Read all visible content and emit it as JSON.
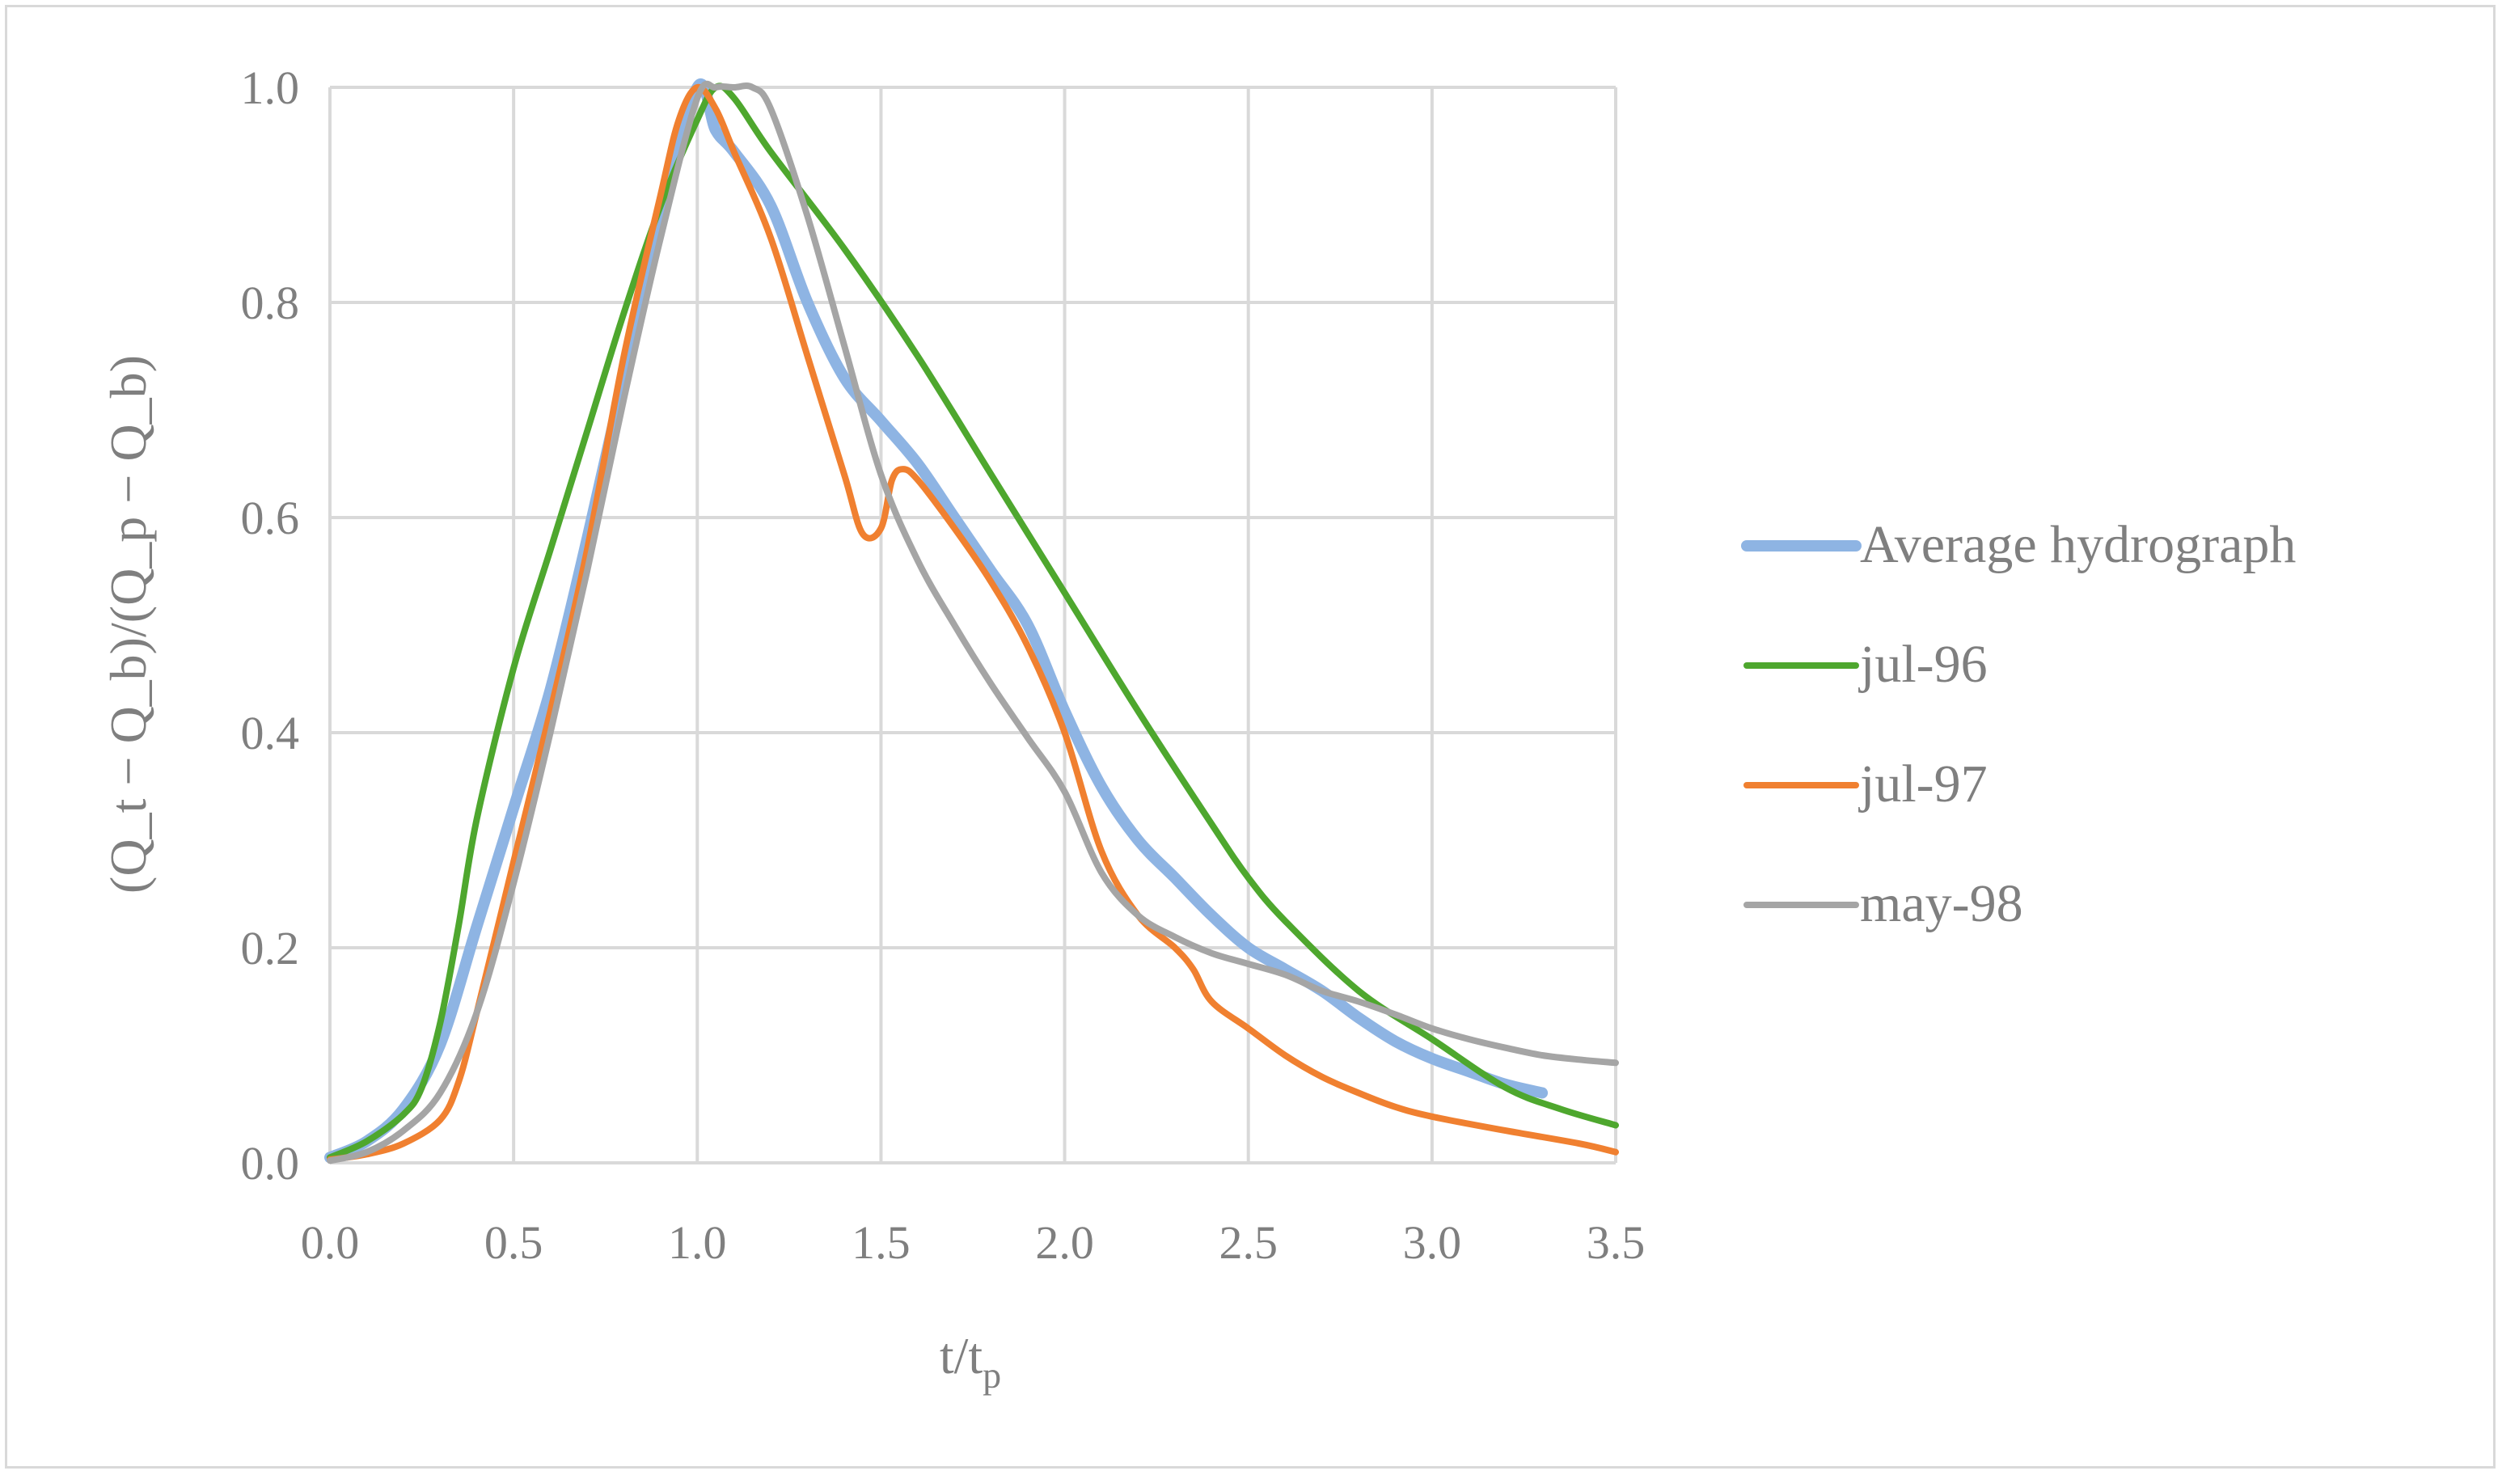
{
  "chart_data": {
    "type": "line",
    "title": "",
    "xlabel": {
      "base": "t/t",
      "sub": "p"
    },
    "ylabel": {
      "text": "(Q_t − Q_b)/(Q_p − Q_b)"
    },
    "xlim": [
      0,
      3.5
    ],
    "ylim": [
      0,
      1.0
    ],
    "x_ticks": [
      "0.0",
      "0.5",
      "1.0",
      "1.5",
      "2.0",
      "2.5",
      "3.0",
      "3.5"
    ],
    "y_ticks": [
      "0.0",
      "0.2",
      "0.4",
      "0.6",
      "0.8",
      "1.0"
    ],
    "grid": true,
    "legend_position": "right",
    "series": [
      {
        "name": "Average hydrograph",
        "color": "#8eb4e3",
        "width": "thick",
        "points": [
          [
            0,
            0.005
          ],
          [
            0.1,
            0.02
          ],
          [
            0.2,
            0.05
          ],
          [
            0.3,
            0.11
          ],
          [
            0.4,
            0.22
          ],
          [
            0.5,
            0.33
          ],
          [
            0.6,
            0.44
          ],
          [
            0.7,
            0.58
          ],
          [
            0.8,
            0.73
          ],
          [
            0.9,
            0.87
          ],
          [
            1.0,
            1.0
          ],
          [
            1.05,
            0.96
          ],
          [
            1.1,
            0.94
          ],
          [
            1.2,
            0.89
          ],
          [
            1.3,
            0.8
          ],
          [
            1.4,
            0.73
          ],
          [
            1.5,
            0.69
          ],
          [
            1.6,
            0.65
          ],
          [
            1.7,
            0.6
          ],
          [
            1.8,
            0.55
          ],
          [
            1.9,
            0.5
          ],
          [
            2.0,
            0.42
          ],
          [
            2.1,
            0.35
          ],
          [
            2.2,
            0.3
          ],
          [
            2.3,
            0.265
          ],
          [
            2.4,
            0.23
          ],
          [
            2.5,
            0.2
          ],
          [
            2.6,
            0.18
          ],
          [
            2.7,
            0.16
          ],
          [
            2.8,
            0.135
          ],
          [
            2.9,
            0.113
          ],
          [
            3.0,
            0.097
          ],
          [
            3.1,
            0.085
          ],
          [
            3.2,
            0.073
          ],
          [
            3.3,
            0.065
          ]
        ]
      },
      {
        "name": "jul-96",
        "color": "#4ea72e",
        "width": "normal",
        "points": [
          [
            0,
            0.005
          ],
          [
            0.1,
            0.02
          ],
          [
            0.2,
            0.045
          ],
          [
            0.25,
            0.07
          ],
          [
            0.3,
            0.13
          ],
          [
            0.35,
            0.22
          ],
          [
            0.4,
            0.32
          ],
          [
            0.5,
            0.46
          ],
          [
            0.6,
            0.57
          ],
          [
            0.7,
            0.68
          ],
          [
            0.8,
            0.79
          ],
          [
            0.9,
            0.89
          ],
          [
            1.0,
            0.97
          ],
          [
            1.05,
            1.0
          ],
          [
            1.1,
            0.99
          ],
          [
            1.2,
            0.94
          ],
          [
            1.4,
            0.85
          ],
          [
            1.6,
            0.75
          ],
          [
            1.8,
            0.64
          ],
          [
            2.0,
            0.53
          ],
          [
            2.2,
            0.42
          ],
          [
            2.4,
            0.315
          ],
          [
            2.5,
            0.265
          ],
          [
            2.6,
            0.225
          ],
          [
            2.8,
            0.16
          ],
          [
            3.0,
            0.115
          ],
          [
            3.2,
            0.07
          ],
          [
            3.35,
            0.05
          ],
          [
            3.5,
            0.035
          ]
        ]
      },
      {
        "name": "jul-97",
        "color": "#f08030",
        "width": "normal",
        "points": [
          [
            0,
            0.003
          ],
          [
            0.1,
            0.008
          ],
          [
            0.2,
            0.018
          ],
          [
            0.3,
            0.04
          ],
          [
            0.35,
            0.075
          ],
          [
            0.4,
            0.14
          ],
          [
            0.5,
            0.28
          ],
          [
            0.6,
            0.42
          ],
          [
            0.7,
            0.57
          ],
          [
            0.8,
            0.75
          ],
          [
            0.9,
            0.9
          ],
          [
            0.95,
            0.97
          ],
          [
            1.0,
            1.0
          ],
          [
            1.05,
            0.98
          ],
          [
            1.1,
            0.94
          ],
          [
            1.2,
            0.86
          ],
          [
            1.3,
            0.75
          ],
          [
            1.4,
            0.64
          ],
          [
            1.45,
            0.585
          ],
          [
            1.5,
            0.59
          ],
          [
            1.53,
            0.635
          ],
          [
            1.56,
            0.645
          ],
          [
            1.6,
            0.635
          ],
          [
            1.7,
            0.59
          ],
          [
            1.8,
            0.54
          ],
          [
            1.9,
            0.48
          ],
          [
            2.0,
            0.4
          ],
          [
            2.1,
            0.29
          ],
          [
            2.2,
            0.23
          ],
          [
            2.3,
            0.2
          ],
          [
            2.35,
            0.18
          ],
          [
            2.4,
            0.15
          ],
          [
            2.5,
            0.125
          ],
          [
            2.6,
            0.1
          ],
          [
            2.7,
            0.08
          ],
          [
            2.8,
            0.065
          ],
          [
            2.9,
            0.052
          ],
          [
            3.0,
            0.043
          ],
          [
            3.2,
            0.03
          ],
          [
            3.4,
            0.018
          ],
          [
            3.5,
            0.01
          ]
        ]
      },
      {
        "name": "may-98",
        "color": "#a5a5a5",
        "width": "normal",
        "points": [
          [
            0,
            0.002
          ],
          [
            0.1,
            0.01
          ],
          [
            0.2,
            0.03
          ],
          [
            0.3,
            0.065
          ],
          [
            0.4,
            0.14
          ],
          [
            0.5,
            0.26
          ],
          [
            0.6,
            0.4
          ],
          [
            0.7,
            0.55
          ],
          [
            0.8,
            0.71
          ],
          [
            0.9,
            0.86
          ],
          [
            1.0,
            0.99
          ],
          [
            1.05,
            1.0
          ],
          [
            1.1,
            1.0
          ],
          [
            1.15,
            1.0
          ],
          [
            1.2,
            0.98
          ],
          [
            1.3,
            0.88
          ],
          [
            1.4,
            0.76
          ],
          [
            1.5,
            0.64
          ],
          [
            1.6,
            0.56
          ],
          [
            1.7,
            0.5
          ],
          [
            1.8,
            0.445
          ],
          [
            1.9,
            0.395
          ],
          [
            2.0,
            0.345
          ],
          [
            2.1,
            0.27
          ],
          [
            2.2,
            0.23
          ],
          [
            2.3,
            0.21
          ],
          [
            2.4,
            0.195
          ],
          [
            2.5,
            0.185
          ],
          [
            2.6,
            0.175
          ],
          [
            2.7,
            0.16
          ],
          [
            2.8,
            0.15
          ],
          [
            2.9,
            0.138
          ],
          [
            3.0,
            0.125
          ],
          [
            3.1,
            0.115
          ],
          [
            3.2,
            0.107
          ],
          [
            3.3,
            0.1
          ],
          [
            3.4,
            0.096
          ],
          [
            3.5,
            0.093
          ]
        ]
      }
    ]
  }
}
